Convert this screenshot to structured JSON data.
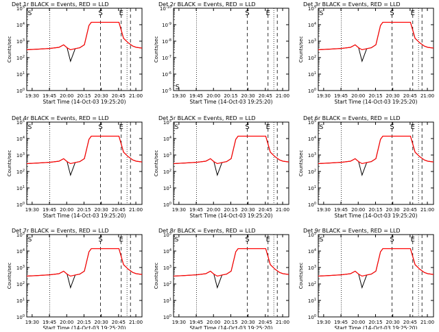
{
  "chart_data": [
    {
      "type": "line",
      "title": "Det 1r BLACK = Events, RED = LLD",
      "xlabel": "Start Time (14-Oct-03 19:25:20)",
      "ylabel": "Counts/sec",
      "x_ticks": [
        "19:30",
        "19:45",
        "20:00",
        "20:15",
        "20:30",
        "20:45",
        "21:00"
      ],
      "y_ticks": [
        "10^0",
        "10^1",
        "10^2",
        "10^3",
        "10^4",
        "10^5"
      ],
      "y_scale": "log",
      "ylim": [
        1,
        100000
      ],
      "xlim_minutes": [
        0,
        100
      ],
      "markers": {
        "start": "S",
        "end": "E"
      },
      "has_data": true,
      "series": [
        {
          "name": "BLACK = Events",
          "color": "#000000"
        },
        {
          "name": "RED = LLD",
          "color": "#ff0000"
        }
      ],
      "curve": {
        "x": [
          0,
          10,
          20,
          28,
          32,
          35,
          38,
          42,
          46,
          50,
          54,
          56,
          60,
          64,
          68,
          70,
          74,
          76,
          80,
          84,
          88,
          92,
          95,
          100
        ],
        "y": [
          300,
          330,
          360,
          420,
          600,
          400,
          300,
          350,
          400,
          600,
          9000,
          14000,
          14000,
          14000,
          14000,
          14000,
          14000,
          14000,
          14000,
          1500,
          800,
          500,
          420,
          380
        ]
      }
    },
    {
      "type": "line",
      "title": "Det 2r BLACK = Events, RED = LLD",
      "xlabel": "Start Time (14-Oct-03 19:25:20)",
      "ylabel": "Counts/sec",
      "x_ticks": [
        "19:30",
        "19:45",
        "20:00",
        "20:15",
        "20:30",
        "20:45",
        "21:00"
      ],
      "y_ticks": [
        "10^-5",
        "10^-6",
        "10^-7",
        "10^-8",
        "10^-9",
        "10^-10"
      ],
      "y_scale": "log",
      "ylim": [
        1e-10,
        1e-05
      ],
      "xlim_minutes": [
        0,
        100
      ],
      "markers": {
        "start": "S",
        "end": "E"
      },
      "has_data": false
    },
    {
      "type": "line",
      "title": "Det 3r BLACK = Events, RED = LLD",
      "xlabel": "Start Time (14-Oct-03 19:25:20)",
      "ylabel": "Counts/sec",
      "x_ticks": [
        "19:30",
        "19:45",
        "20:00",
        "20:15",
        "20:30",
        "20:45",
        "21:00"
      ],
      "y_ticks": [
        "10^0",
        "10^1",
        "10^2",
        "10^3",
        "10^4",
        "10^5"
      ],
      "y_scale": "log",
      "ylim": [
        1,
        100000
      ],
      "xlim_minutes": [
        0,
        100
      ],
      "markers": {
        "start": "S",
        "end": "E"
      },
      "has_data": true,
      "series": [
        {
          "name": "BLACK = Events",
          "color": "#000000"
        },
        {
          "name": "RED = LLD",
          "color": "#ff0000"
        }
      ],
      "curve": {
        "x": [
          0,
          10,
          20,
          28,
          32,
          35,
          38,
          42,
          46,
          50,
          54,
          56,
          60,
          64,
          68,
          70,
          74,
          76,
          80,
          84,
          88,
          92,
          95,
          100
        ],
        "y": [
          300,
          330,
          360,
          420,
          600,
          400,
          300,
          350,
          400,
          600,
          9000,
          14000,
          14000,
          14000,
          14000,
          14000,
          14000,
          14000,
          14000,
          1500,
          800,
          500,
          420,
          380
        ]
      }
    },
    {
      "type": "line",
      "title": "Det 4r BLACK = Events, RED = LLD",
      "xlabel": "Start Time (14-Oct-03 19:25:20)",
      "ylabel": "Counts/sec",
      "x_ticks": [
        "19:30",
        "19:45",
        "20:00",
        "20:15",
        "20:30",
        "20:45",
        "21:00"
      ],
      "y_ticks": [
        "10^0",
        "10^1",
        "10^2",
        "10^3",
        "10^4",
        "10^5"
      ],
      "y_scale": "log",
      "ylim": [
        1,
        100000
      ],
      "xlim_minutes": [
        0,
        100
      ],
      "markers": {
        "start": "S",
        "end": "E"
      },
      "has_data": true,
      "series": [
        {
          "name": "BLACK = Events",
          "color": "#000000"
        },
        {
          "name": "RED = LLD",
          "color": "#ff0000"
        }
      ],
      "curve": {
        "x": [
          0,
          10,
          20,
          28,
          32,
          35,
          38,
          42,
          46,
          50,
          54,
          56,
          60,
          64,
          68,
          70,
          74,
          76,
          80,
          84,
          88,
          92,
          95,
          100
        ],
        "y": [
          300,
          330,
          360,
          420,
          600,
          400,
          300,
          350,
          400,
          600,
          9000,
          14000,
          14000,
          14000,
          14000,
          14000,
          14000,
          14000,
          14000,
          1500,
          800,
          500,
          420,
          380
        ]
      }
    },
    {
      "type": "line",
      "title": "Det 5r BLACK = Events, RED = LLD",
      "xlabel": "Start Time (14-Oct-03 19:25:20)",
      "ylabel": "Counts/sec",
      "x_ticks": [
        "19:30",
        "19:45",
        "20:00",
        "20:15",
        "20:30",
        "20:45",
        "21:00"
      ],
      "y_ticks": [
        "10^0",
        "10^1",
        "10^2",
        "10^3",
        "10^4",
        "10^5"
      ],
      "y_scale": "log",
      "ylim": [
        1,
        100000
      ],
      "xlim_minutes": [
        0,
        100
      ],
      "markers": {
        "start": "S",
        "end": "E"
      },
      "has_data": true,
      "series": [
        {
          "name": "BLACK = Events",
          "color": "#000000"
        },
        {
          "name": "RED = LLD",
          "color": "#ff0000"
        }
      ],
      "curve": {
        "x": [
          0,
          10,
          20,
          28,
          32,
          35,
          38,
          42,
          46,
          50,
          54,
          56,
          60,
          64,
          68,
          70,
          74,
          76,
          80,
          84,
          88,
          92,
          95,
          100
        ],
        "y": [
          300,
          330,
          360,
          420,
          600,
          400,
          300,
          350,
          400,
          600,
          9000,
          14000,
          14000,
          14000,
          14000,
          14000,
          14000,
          14000,
          14000,
          1500,
          800,
          500,
          420,
          380
        ]
      }
    },
    {
      "type": "line",
      "title": "Det 6r BLACK = Events, RED = LLD",
      "xlabel": "Start Time (14-Oct-03 19:25:20)",
      "ylabel": "Counts/sec",
      "x_ticks": [
        "19:30",
        "19:45",
        "20:00",
        "20:15",
        "20:30",
        "20:45",
        "21:00"
      ],
      "y_ticks": [
        "10^0",
        "10^1",
        "10^2",
        "10^3",
        "10^4",
        "10^5"
      ],
      "y_scale": "log",
      "ylim": [
        1,
        100000
      ],
      "xlim_minutes": [
        0,
        100
      ],
      "markers": {
        "start": "S",
        "end": "E"
      },
      "has_data": true,
      "series": [
        {
          "name": "BLACK = Events",
          "color": "#000000"
        },
        {
          "name": "RED = LLD",
          "color": "#ff0000"
        }
      ],
      "curve": {
        "x": [
          0,
          10,
          20,
          28,
          32,
          35,
          38,
          42,
          46,
          50,
          54,
          56,
          60,
          64,
          68,
          70,
          74,
          76,
          80,
          84,
          88,
          92,
          95,
          100
        ],
        "y": [
          300,
          330,
          360,
          420,
          600,
          400,
          300,
          350,
          400,
          600,
          9000,
          14000,
          14000,
          14000,
          14000,
          14000,
          14000,
          14000,
          14000,
          1500,
          800,
          500,
          420,
          380
        ]
      }
    },
    {
      "type": "line",
      "title": "Det 7r BLACK = Events, RED = LLD",
      "xlabel": "Start Time (14-Oct-03 19:25:20)",
      "ylabel": "Counts/sec",
      "x_ticks": [
        "19:30",
        "19:45",
        "20:00",
        "20:15",
        "20:30",
        "20:45",
        "21:00"
      ],
      "y_ticks": [
        "10^0",
        "10^1",
        "10^2",
        "10^3",
        "10^4",
        "10^5"
      ],
      "y_scale": "log",
      "ylim": [
        1,
        100000
      ],
      "xlim_minutes": [
        0,
        100
      ],
      "markers": {
        "start": "S",
        "end": "E"
      },
      "has_data": true,
      "series": [
        {
          "name": "BLACK = Events",
          "color": "#000000"
        },
        {
          "name": "RED = LLD",
          "color": "#ff0000"
        }
      ],
      "curve": {
        "x": [
          0,
          10,
          20,
          28,
          32,
          35,
          38,
          42,
          46,
          50,
          54,
          56,
          60,
          64,
          68,
          70,
          74,
          76,
          80,
          84,
          88,
          92,
          95,
          100
        ],
        "y": [
          300,
          330,
          360,
          420,
          600,
          400,
          300,
          350,
          400,
          600,
          9000,
          14000,
          14000,
          14000,
          14000,
          14000,
          14000,
          14000,
          14000,
          1500,
          800,
          500,
          420,
          380
        ]
      }
    },
    {
      "type": "line",
      "title": "Det 8r BLACK = Events, RED = LLD",
      "xlabel": "Start Time (14-Oct-03 19:25:20)",
      "ylabel": "Counts/sec",
      "x_ticks": [
        "19:30",
        "19:45",
        "20:00",
        "20:15",
        "20:30",
        "20:45",
        "21:00"
      ],
      "y_ticks": [
        "10^0",
        "10^1",
        "10^2",
        "10^3",
        "10^4",
        "10^5"
      ],
      "y_scale": "log",
      "ylim": [
        1,
        100000
      ],
      "xlim_minutes": [
        0,
        100
      ],
      "markers": {
        "start": "S",
        "end": "E"
      },
      "has_data": true,
      "series": [
        {
          "name": "BLACK = Events",
          "color": "#000000"
        },
        {
          "name": "RED = LLD",
          "color": "#ff0000"
        }
      ],
      "curve": {
        "x": [
          0,
          10,
          20,
          28,
          32,
          35,
          38,
          42,
          46,
          50,
          54,
          56,
          60,
          64,
          68,
          70,
          74,
          76,
          80,
          84,
          88,
          92,
          95,
          100
        ],
        "y": [
          300,
          330,
          360,
          420,
          600,
          400,
          300,
          350,
          400,
          600,
          9000,
          14000,
          14000,
          14000,
          14000,
          14000,
          14000,
          14000,
          14000,
          1500,
          800,
          500,
          420,
          380
        ]
      }
    },
    {
      "type": "line",
      "title": "Det 9r BLACK = Events, RED = LLD",
      "xlabel": "Start Time (14-Oct-03 19:25:20)",
      "ylabel": "Counts/sec",
      "x_ticks": [
        "19:30",
        "19:45",
        "20:00",
        "20:15",
        "20:30",
        "20:45",
        "21:00"
      ],
      "y_ticks": [
        "10^0",
        "10^1",
        "10^2",
        "10^3",
        "10^4",
        "10^5"
      ],
      "y_scale": "log",
      "ylim": [
        1,
        100000
      ],
      "xlim_minutes": [
        0,
        100
      ],
      "markers": {
        "start": "S",
        "end": "E"
      },
      "has_data": true,
      "series": [
        {
          "name": "BLACK = Events",
          "color": "#000000"
        },
        {
          "name": "RED = LLD",
          "color": "#ff0000"
        }
      ],
      "curve": {
        "x": [
          0,
          10,
          20,
          28,
          32,
          35,
          38,
          42,
          46,
          50,
          54,
          56,
          60,
          64,
          68,
          70,
          74,
          76,
          80,
          84,
          88,
          92,
          95,
          100
        ],
        "y": [
          300,
          330,
          360,
          420,
          600,
          400,
          300,
          350,
          400,
          600,
          9000,
          14000,
          14000,
          14000,
          14000,
          14000,
          14000,
          14000,
          14000,
          1500,
          800,
          500,
          420,
          380
        ]
      }
    }
  ]
}
